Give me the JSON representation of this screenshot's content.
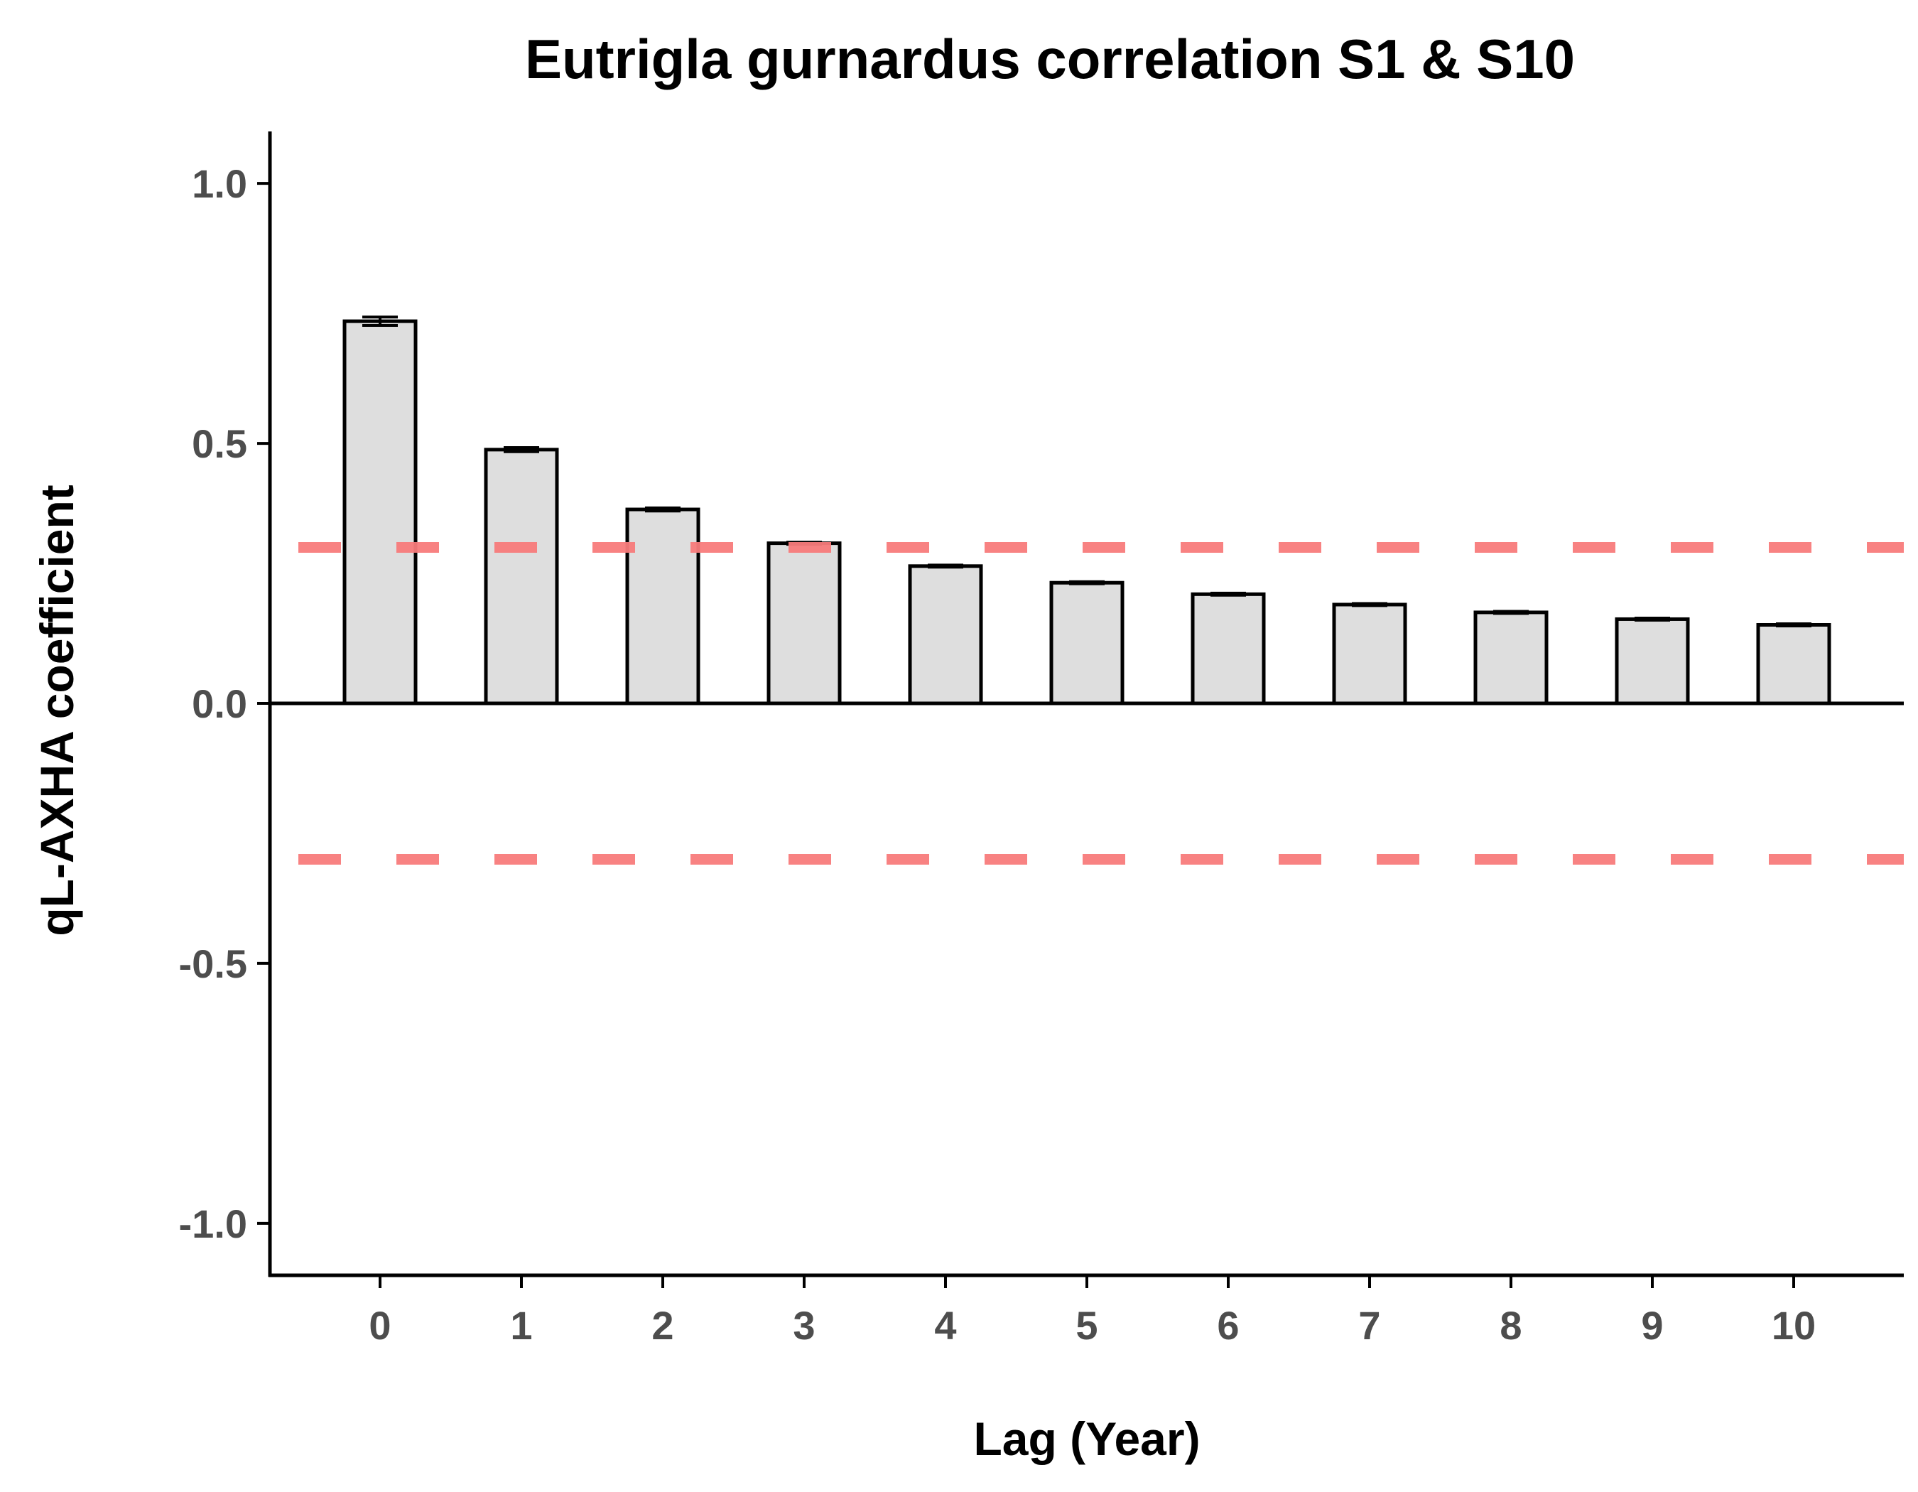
{
  "chart_data": {
    "type": "bar",
    "title": "Eutrigla gurnardus correlation S1 & S10",
    "xlabel": "Lag (Year)",
    "ylabel": "qL-AXHA coefficient",
    "categories": [
      "0",
      "1",
      "2",
      "3",
      "4",
      "5",
      "6",
      "7",
      "8",
      "9",
      "10"
    ],
    "values": [
      0.735,
      0.488,
      0.373,
      0.308,
      0.264,
      0.232,
      0.21,
      0.19,
      0.175,
      0.162,
      0.151
    ],
    "error_half_width": [
      0.008,
      0.004,
      0.003,
      0.002,
      0.002,
      0.002,
      0.002,
      0.002,
      0.002,
      0.002,
      0.002
    ],
    "ylim": [
      -1.1,
      1.1
    ],
    "yticks": [
      1.0,
      0.5,
      0.0,
      -0.5,
      -1.0
    ],
    "ytick_labels": [
      "1.0",
      "0.5",
      "0.0",
      "-0.5",
      "-1.0"
    ],
    "reference_lines": [
      0.3,
      -0.3
    ],
    "zero_line": 0.0,
    "grid": false,
    "legend": "none",
    "colors": {
      "bar_fill": "#dedede",
      "bar_stroke": "#000000",
      "reference_line": "#f87c7c",
      "tick_label": "#4d4d4d",
      "axis": "#000000"
    }
  }
}
